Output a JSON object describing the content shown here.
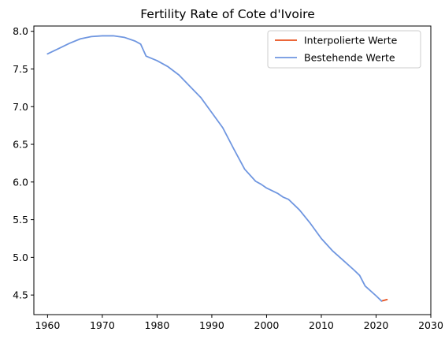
{
  "chart_data": {
    "type": "line",
    "title": "Fertility Rate of Cote d'Ivoire",
    "xlabel": "",
    "ylabel": "",
    "xlim": [
      1957.5,
      2030
    ],
    "ylim": [
      4.24,
      8.07
    ],
    "xticks": [
      1960,
      1970,
      1980,
      1990,
      2000,
      2010,
      2020,
      2030
    ],
    "yticks": [
      4.5,
      5.0,
      5.5,
      6.0,
      6.5,
      7.0,
      7.5,
      8.0
    ],
    "grid": false,
    "legend_position": "top-right",
    "series": [
      {
        "name": "Interpolierte Werte",
        "color": "#e8511d",
        "x": [
          2021,
          2022
        ],
        "y": [
          4.42,
          4.44
        ]
      },
      {
        "name": "Bestehende Werte",
        "color": "#6f96e0",
        "x": [
          1960,
          1962,
          1964,
          1966,
          1968,
          1970,
          1972,
          1974,
          1976,
          1977,
          1978,
          1980,
          1982,
          1984,
          1986,
          1988,
          1990,
          1992,
          1994,
          1996,
          1998,
          1999,
          2000,
          2002,
          2003,
          2004,
          2006,
          2008,
          2010,
          2012,
          2014,
          2016,
          2017,
          2018,
          2020,
          2021
        ],
        "y": [
          7.7,
          7.77,
          7.84,
          7.9,
          7.93,
          7.94,
          7.94,
          7.92,
          7.87,
          7.83,
          7.67,
          7.61,
          7.53,
          7.42,
          7.27,
          7.12,
          6.92,
          6.72,
          6.44,
          6.17,
          6.01,
          5.97,
          5.92,
          5.85,
          5.8,
          5.77,
          5.63,
          5.45,
          5.25,
          5.09,
          4.96,
          4.83,
          4.76,
          4.62,
          4.49,
          4.42
        ]
      }
    ]
  }
}
